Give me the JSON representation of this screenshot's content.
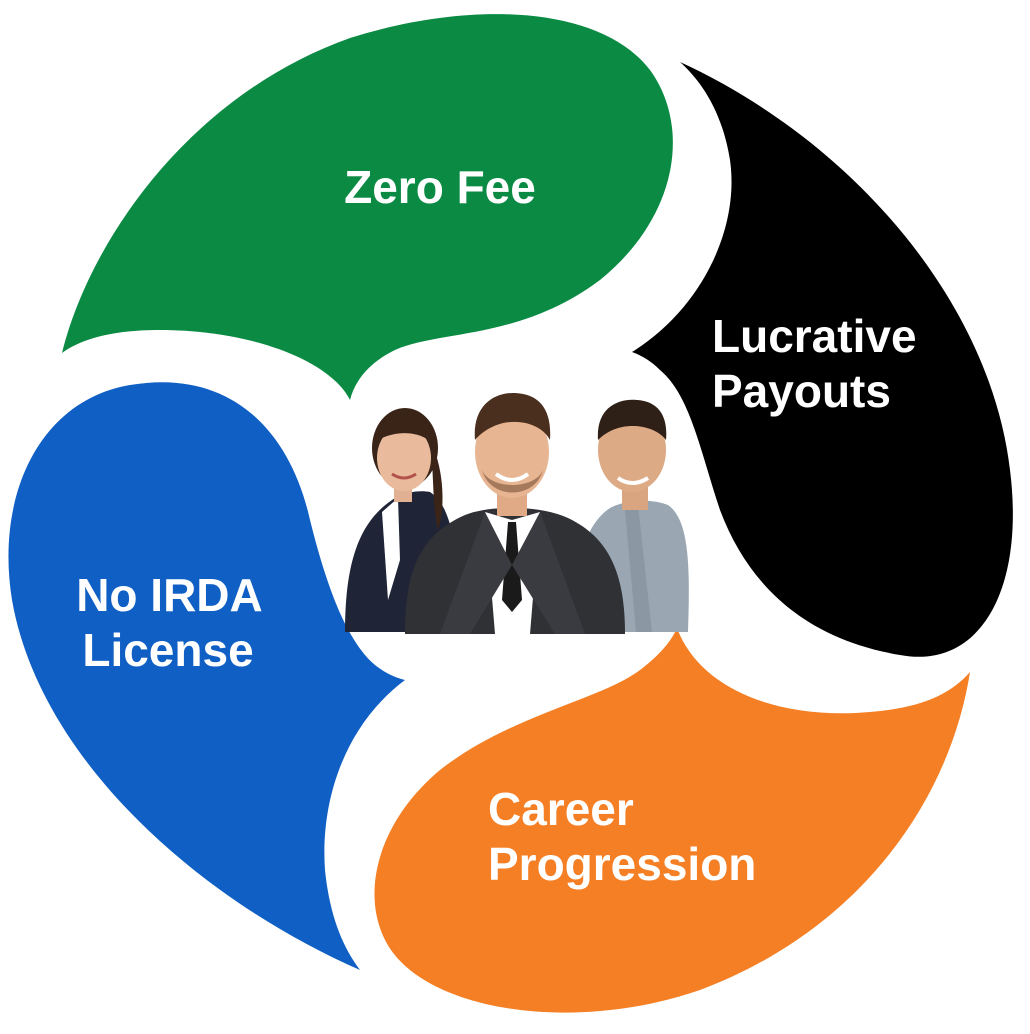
{
  "diagram": {
    "segments": [
      {
        "id": "zero-fee",
        "lines": [
          "Zero Fee"
        ],
        "color": "#0b8a44"
      },
      {
        "id": "lucrative-payouts",
        "lines": [
          "Lucrative",
          "Payouts"
        ],
        "color": "#000000"
      },
      {
        "id": "career-progression",
        "lines": [
          "Career",
          "Progression"
        ],
        "color": "#f47f24"
      },
      {
        "id": "no-irda-license",
        "lines": [
          "No IRDA",
          "License"
        ],
        "color": "#0f5fc4"
      }
    ],
    "center_image": {
      "subject": "three-business-professionals"
    }
  }
}
